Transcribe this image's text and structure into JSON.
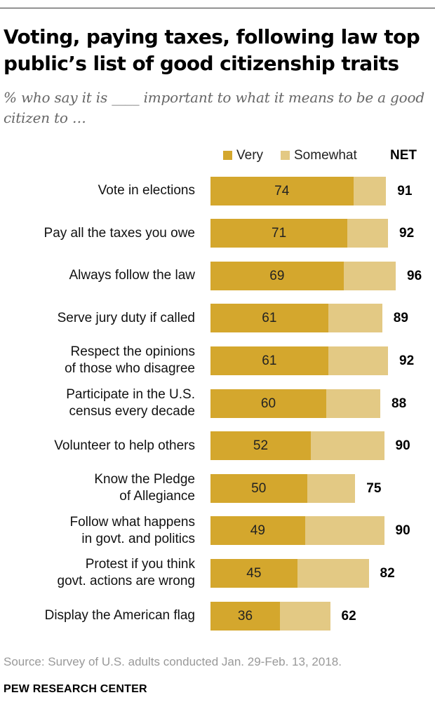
{
  "title": "Voting, paying taxes, following law top public’s list of good citizenship traits",
  "subtitle": "% who say it is ____ important to what it means to be a good citizen to …",
  "legend": {
    "very": "Very",
    "somewhat": "Somewhat",
    "net": "NET"
  },
  "colors": {
    "very": "#d4a72d",
    "somewhat": "#e3c984"
  },
  "source": "Source: Survey of U.S. adults conducted Jan. 29-Feb. 13, 2018.",
  "brand": "PEW RESEARCH CENTER",
  "chart_data": {
    "type": "bar",
    "orientation": "horizontal",
    "stacked": true,
    "categories": [
      "Vote in elections",
      "Pay all the taxes you owe",
      "Always follow the law",
      "Serve jury duty if called",
      "Respect the opinions\nof those who disagree",
      "Participate in the U.S.\ncensus every decade",
      "Volunteer to help others",
      "Know the Pledge\nof Allegiance",
      "Follow what happens\nin govt. and politics",
      "Protest if you think\ngovt. actions are wrong",
      "Display the American flag"
    ],
    "series": [
      {
        "name": "Very",
        "values": [
          74,
          71,
          69,
          61,
          61,
          60,
          52,
          50,
          49,
          45,
          36
        ]
      },
      {
        "name": "Somewhat",
        "values": [
          17,
          21,
          27,
          28,
          31,
          28,
          38,
          25,
          41,
          37,
          26
        ]
      }
    ],
    "net": [
      91,
      92,
      96,
      89,
      92,
      88,
      90,
      75,
      90,
      82,
      62
    ],
    "legend_position": "top-right",
    "grid": false
  }
}
